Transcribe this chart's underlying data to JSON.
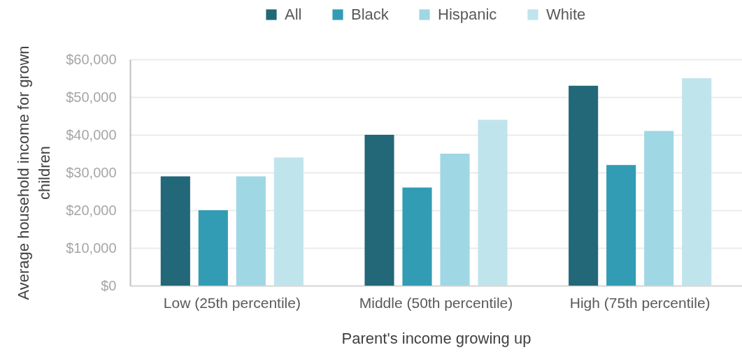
{
  "chart_data": {
    "type": "bar",
    "categories": [
      "Low (25th percentile)",
      "Middle (50th percentile)",
      "High (75th percentile)"
    ],
    "series": [
      {
        "name": "All",
        "color": "#226878",
        "values": [
          29000,
          40000,
          53000
        ]
      },
      {
        "name": "Black",
        "color": "#319cb4",
        "values": [
          20000,
          26000,
          32000
        ]
      },
      {
        "name": "Hispanic",
        "color": "#a0d7e4",
        "values": [
          29000,
          35000,
          41000
        ]
      },
      {
        "name": "White",
        "color": "#c0e4ec",
        "values": [
          34000,
          44000,
          55000
        ]
      }
    ],
    "xlabel": "Parent's income growing up",
    "ylabel": "Average household income for grown children",
    "ylim": [
      0,
      60000
    ],
    "yticks": [
      {
        "value": 0,
        "label": "$0"
      },
      {
        "value": 10000,
        "label": "$10,000"
      },
      {
        "value": 20000,
        "label": "$20,000"
      },
      {
        "value": 30000,
        "label": "$30,000"
      },
      {
        "value": 40000,
        "label": "$40,000"
      },
      {
        "value": 50000,
        "label": "$50,000"
      },
      {
        "value": 60000,
        "label": "$60,000"
      }
    ],
    "grid": "y",
    "legend": "top"
  }
}
